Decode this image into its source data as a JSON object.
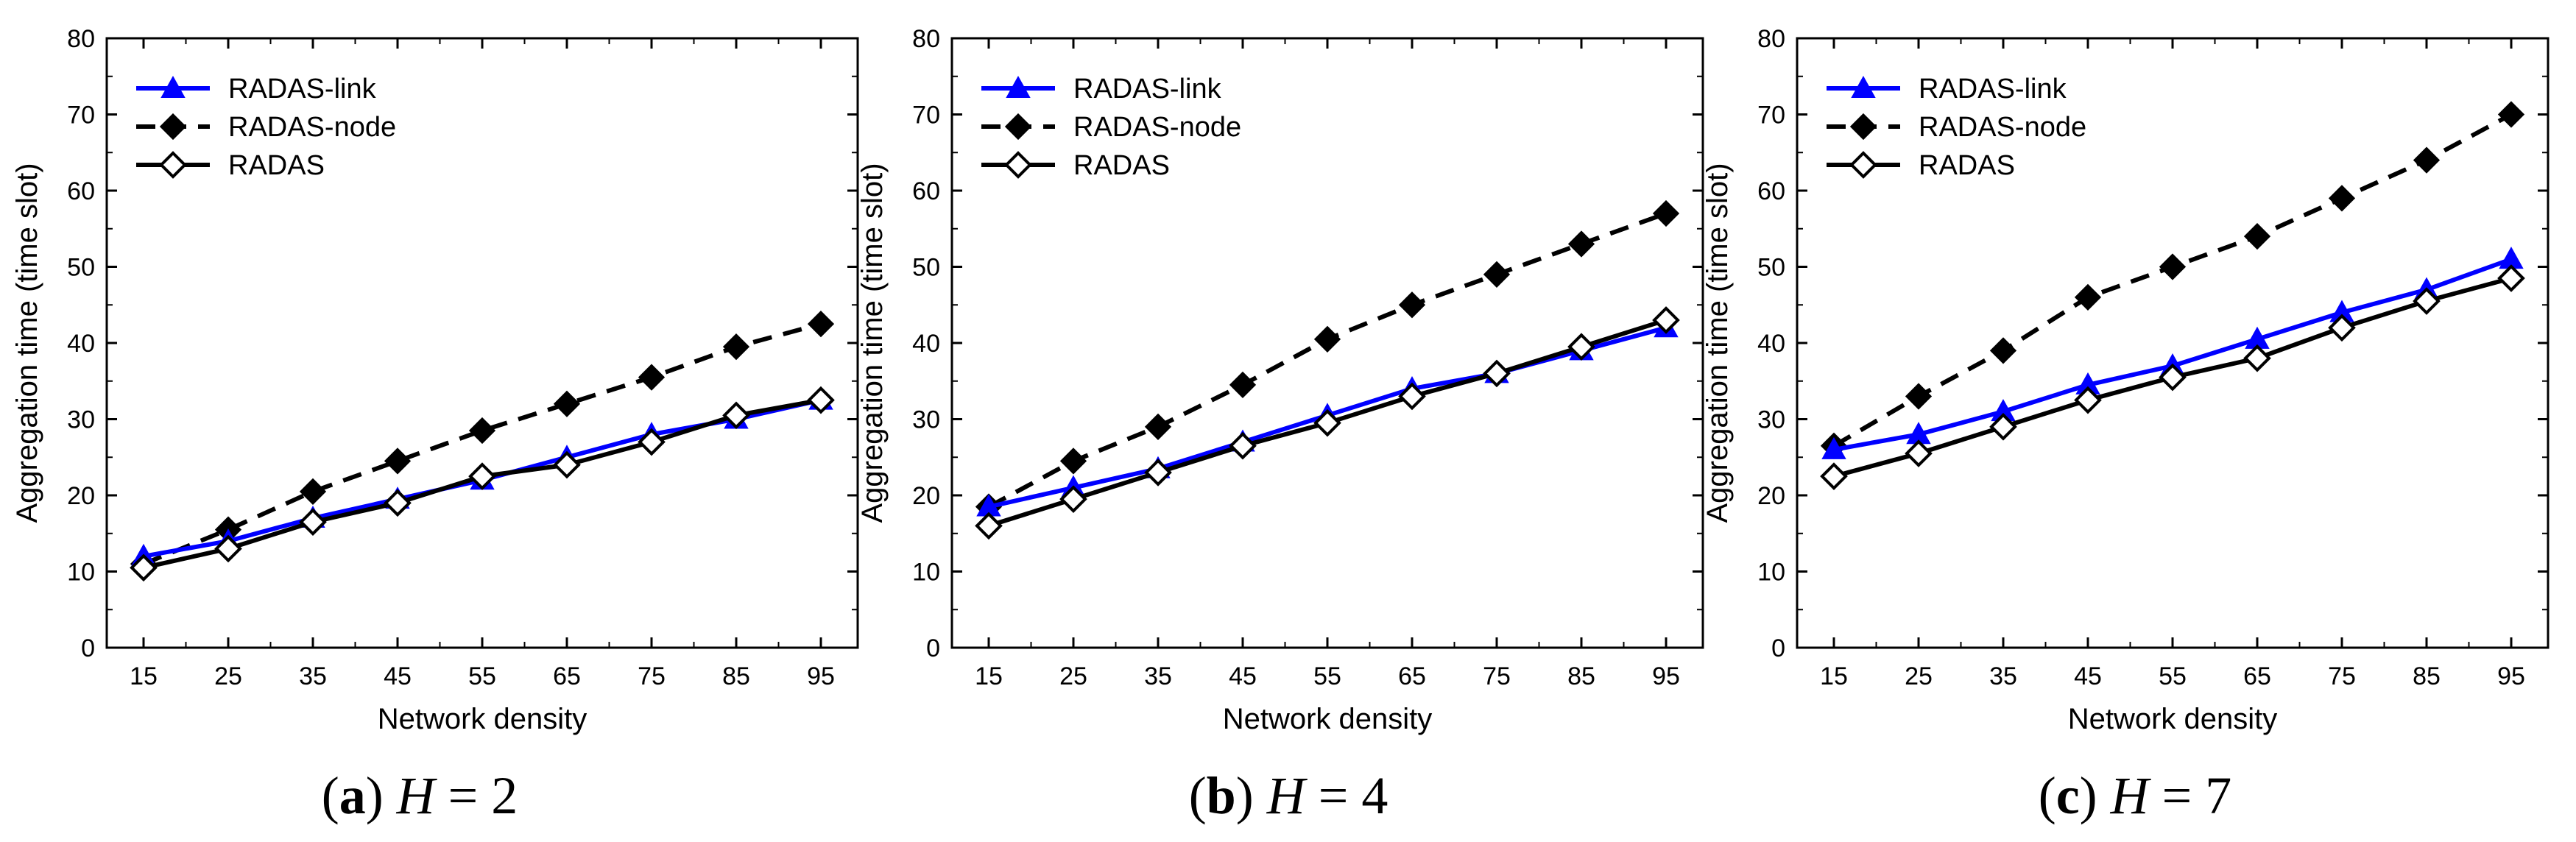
{
  "colors": {
    "RADAS-link": "#0000ff",
    "RADAS-node": "#000000",
    "RADAS": "#000000"
  },
  "chart_data": [
    {
      "type": "line",
      "caption": {
        "tag": "a",
        "variable": "H",
        "equals": "=",
        "value": "2"
      },
      "xlabel": "Network density",
      "ylabel": "Aggregation time (time slot)",
      "x": [
        15,
        25,
        35,
        45,
        55,
        65,
        75,
        85,
        95
      ],
      "x_ticks": [
        "15",
        "25",
        "35",
        "45",
        "55",
        "65",
        "75",
        "85",
        "95"
      ],
      "ylim": [
        0,
        80
      ],
      "y_ticks": [
        "0",
        "10",
        "20",
        "30",
        "40",
        "50",
        "60",
        "70",
        "80"
      ],
      "legend_position": "top-left",
      "series": [
        {
          "name": "RADAS-link",
          "marker": "triangle",
          "line": "solid",
          "values": [
            12,
            14,
            17,
            19.5,
            22,
            25,
            28,
            30,
            32.5
          ]
        },
        {
          "name": "RADAS-node",
          "marker": "diamond-filled",
          "line": "dashed",
          "values": [
            11,
            15.5,
            20.5,
            24.5,
            28.5,
            32,
            35.5,
            39.5,
            42.5
          ]
        },
        {
          "name": "RADAS",
          "marker": "diamond-open",
          "line": "solid",
          "values": [
            10.5,
            13,
            16.5,
            19,
            22.5,
            24,
            27,
            30.5,
            32.5
          ]
        }
      ]
    },
    {
      "type": "line",
      "caption": {
        "tag": "b",
        "variable": "H",
        "equals": "=",
        "value": "4"
      },
      "xlabel": "Network density",
      "ylabel": "Aggregation time (time slot)",
      "x": [
        15,
        25,
        35,
        45,
        55,
        65,
        75,
        85,
        95
      ],
      "x_ticks": [
        "15",
        "25",
        "35",
        "45",
        "55",
        "65",
        "75",
        "85",
        "95"
      ],
      "ylim": [
        0,
        80
      ],
      "y_ticks": [
        "0",
        "10",
        "20",
        "30",
        "40",
        "50",
        "60",
        "70",
        "80"
      ],
      "legend_position": "top-left",
      "series": [
        {
          "name": "RADAS-link",
          "marker": "triangle",
          "line": "solid",
          "values": [
            18.5,
            21,
            23.5,
            27,
            30.5,
            34,
            36,
            39,
            42
          ]
        },
        {
          "name": "RADAS-node",
          "marker": "diamond-filled",
          "line": "dashed",
          "values": [
            18.5,
            24.5,
            29,
            34.5,
            40.5,
            45,
            49,
            53,
            57
          ]
        },
        {
          "name": "RADAS",
          "marker": "diamond-open",
          "line": "solid",
          "values": [
            16,
            19.5,
            23,
            26.5,
            29.5,
            33,
            36,
            39.5,
            43
          ]
        }
      ]
    },
    {
      "type": "line",
      "caption": {
        "tag": "c",
        "variable": "H",
        "equals": "=",
        "value": "7"
      },
      "xlabel": "Network density",
      "ylabel": "Aggregation time (time slot)",
      "x": [
        15,
        25,
        35,
        45,
        55,
        65,
        75,
        85,
        95
      ],
      "x_ticks": [
        "15",
        "25",
        "35",
        "45",
        "55",
        "65",
        "75",
        "85",
        "95"
      ],
      "ylim": [
        0,
        80
      ],
      "y_ticks": [
        "0",
        "10",
        "20",
        "30",
        "40",
        "50",
        "60",
        "70",
        "80"
      ],
      "legend_position": "top-left",
      "series": [
        {
          "name": "RADAS-link",
          "marker": "triangle",
          "line": "solid",
          "values": [
            26,
            28,
            31,
            34.5,
            37,
            40.5,
            44,
            47,
            51
          ]
        },
        {
          "name": "RADAS-node",
          "marker": "diamond-filled",
          "line": "dashed",
          "values": [
            26.5,
            33,
            39,
            46,
            50,
            54,
            59,
            64,
            70
          ]
        },
        {
          "name": "RADAS",
          "marker": "diamond-open",
          "line": "solid",
          "values": [
            22.5,
            25.5,
            29,
            32.5,
            35.5,
            38,
            42,
            45.5,
            48.5
          ]
        }
      ]
    }
  ]
}
